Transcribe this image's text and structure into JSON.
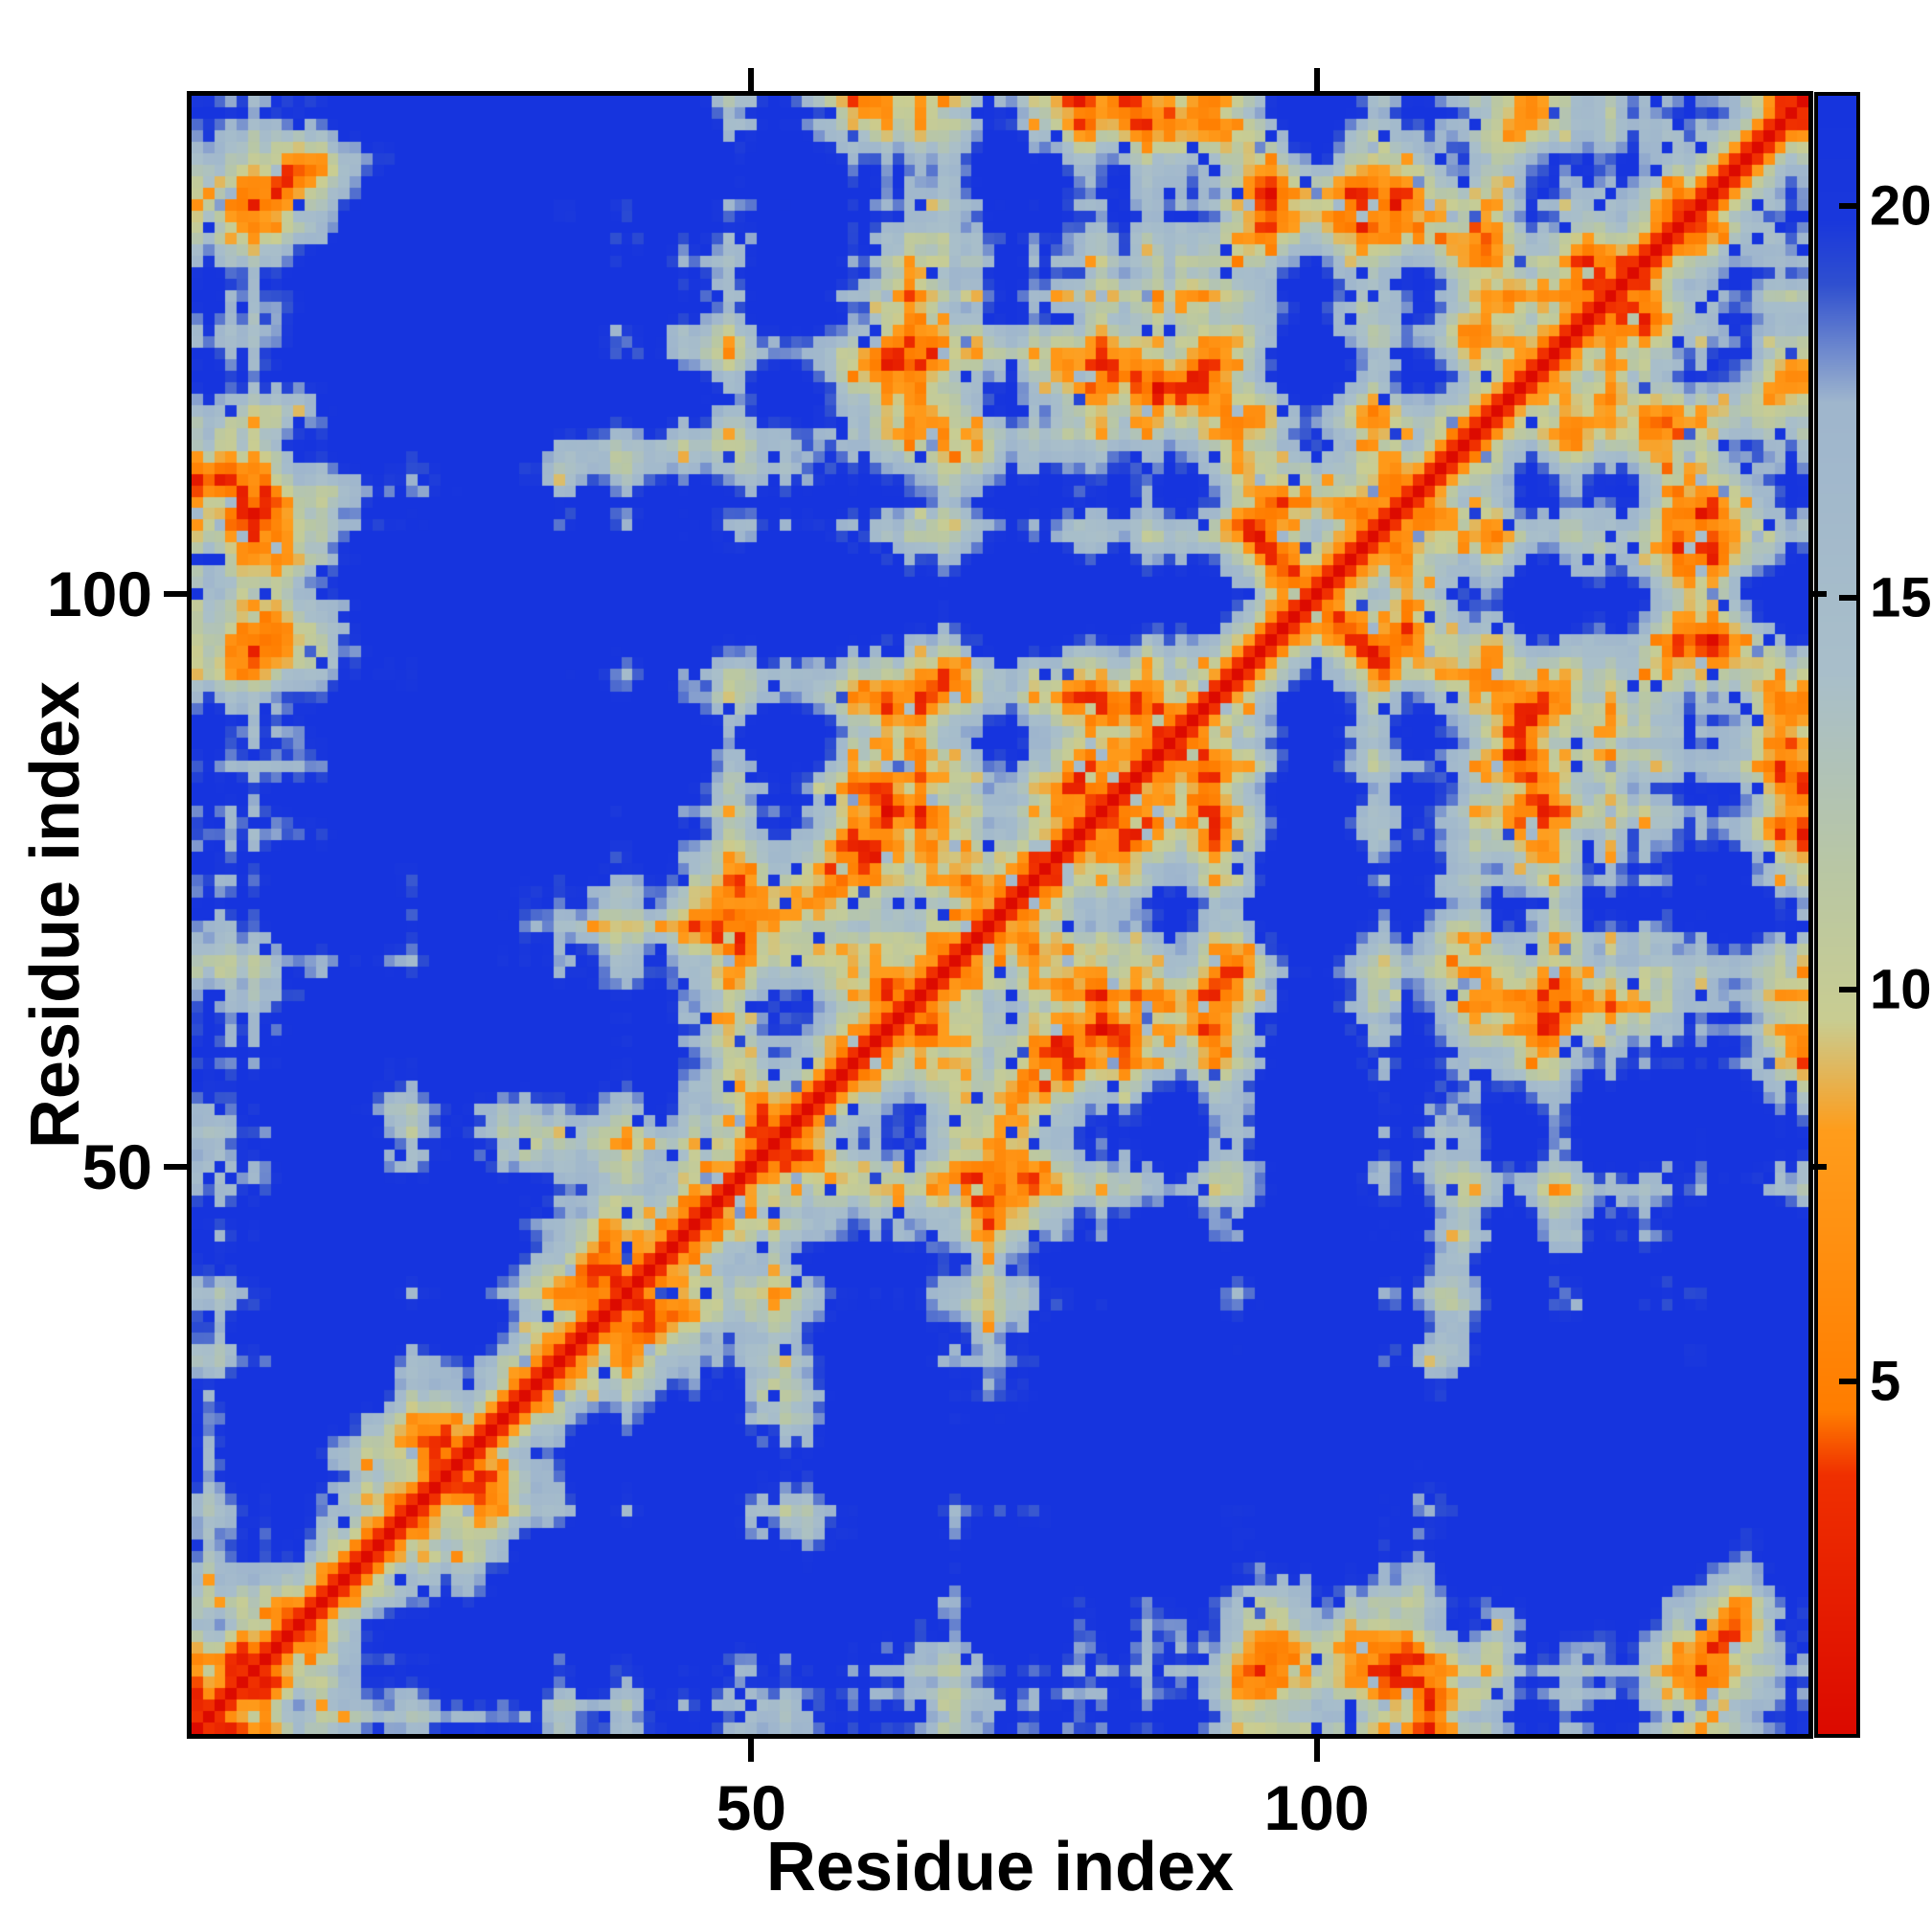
{
  "chart_data": {
    "type": "heatmap",
    "title": "",
    "xlabel": "Residue index",
    "ylabel": "Residue index",
    "n_residues": 143,
    "x_ticks": [
      {
        "value": 50,
        "label": "50"
      },
      {
        "value": 100,
        "label": "100"
      }
    ],
    "y_ticks": [
      {
        "value": 50,
        "label": "50"
      },
      {
        "value": 100,
        "label": "100"
      }
    ],
    "colorbar": {
      "orientation": "vertical",
      "vmin": 0.5,
      "vmax": 21.4,
      "ticks": [
        {
          "value": 5,
          "label": "5"
        },
        {
          "value": 10,
          "label": "10"
        },
        {
          "value": 15,
          "label": "15"
        },
        {
          "value": 20,
          "label": "20"
        }
      ]
    },
    "colorscale": [
      {
        "value": 0.5,
        "color": "#dc0a00"
      },
      {
        "value": 3.8,
        "color": "#f03000"
      },
      {
        "value": 4.6,
        "color": "#ff7d00"
      },
      {
        "value": 8.2,
        "color": "#ff9d1c"
      },
      {
        "value": 9.6,
        "color": "#c9cd92"
      },
      {
        "value": 11.5,
        "color": "#b9c7a4"
      },
      {
        "value": 14.0,
        "color": "#a9bfca"
      },
      {
        "value": 17.5,
        "color": "#9fb6cd"
      },
      {
        "value": 19.0,
        "color": "#3050d0"
      },
      {
        "value": 19.8,
        "color": "#1a38dc"
      },
      {
        "value": 21.4,
        "color": "#1634de"
      }
    ],
    "frame_color": "#000000",
    "matrix": {
      "description": "symmetric residue-residue distance matrix, red diagonal (d=0), distances capped at colorbar max (blue)",
      "symmetric": true,
      "diagonal_value": 0,
      "seed": 7,
      "bond_length": 3.8,
      "confine_radius": 22.5,
      "direction_persistence": 0.6,
      "noise_amplitude": 2.4,
      "speckle_blue_fraction": 0.05,
      "speckle_orange_fraction": 0.04
    }
  }
}
